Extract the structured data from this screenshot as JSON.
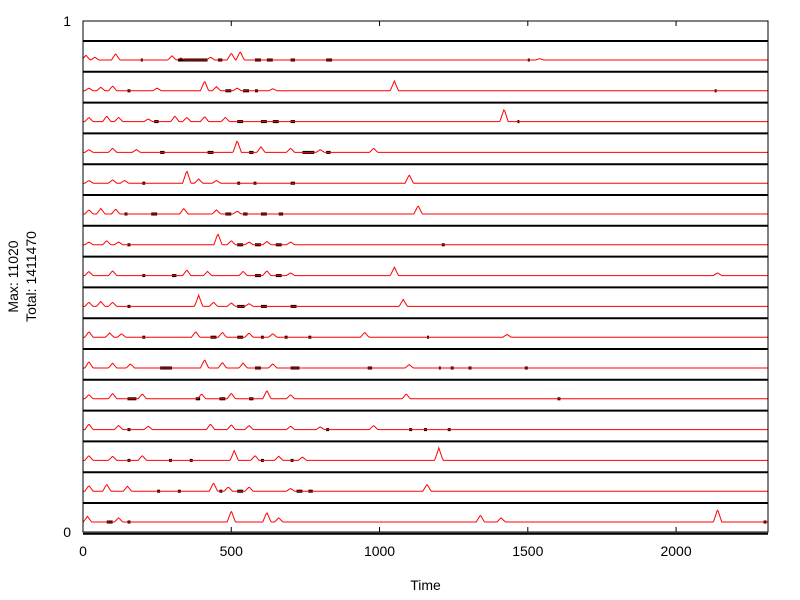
{
  "chart_data": {
    "type": "line",
    "xlabel": "Time",
    "ylabel_lines": [
      "Max: 11020",
      "Total: 1411470"
    ],
    "xlim": [
      0,
      2310
    ],
    "ylim": [
      0,
      1
    ],
    "x_ticks": [
      0,
      500,
      1000,
      1500,
      2000
    ],
    "y_ticks": [
      0,
      1
    ],
    "grid": false,
    "legend": "none",
    "colors": {
      "series": "#ff0000",
      "separator": "#000000",
      "activity": "#000000"
    },
    "rows": [
      {
        "peaks": [
          [
            10,
            0.35
          ],
          [
            40,
            0.2
          ],
          [
            110,
            0.45
          ],
          [
            300,
            0.3
          ],
          [
            330,
            0.15
          ],
          [
            430,
            0.2
          ],
          [
            500,
            0.5
          ],
          [
            530,
            0.6
          ],
          [
            1540,
            0.1
          ]
        ],
        "marks": [
          [
            195,
            200
          ],
          [
            320,
            420
          ],
          [
            455,
            470
          ],
          [
            580,
            600
          ],
          [
            620,
            640
          ],
          [
            700,
            715
          ],
          [
            820,
            840
          ],
          [
            1500,
            1505
          ]
        ]
      },
      {
        "peaks": [
          [
            20,
            0.2
          ],
          [
            60,
            0.25
          ],
          [
            100,
            0.35
          ],
          [
            250,
            0.2
          ],
          [
            410,
            0.7
          ],
          [
            450,
            0.3
          ],
          [
            520,
            0.2
          ],
          [
            640,
            0.15
          ],
          [
            1050,
            0.7
          ]
        ],
        "marks": [
          [
            150,
            160
          ],
          [
            480,
            500
          ],
          [
            540,
            560
          ],
          [
            580,
            590
          ],
          [
            2130,
            2135
          ]
        ]
      },
      {
        "peaks": [
          [
            20,
            0.3
          ],
          [
            80,
            0.4
          ],
          [
            120,
            0.3
          ],
          [
            220,
            0.2
          ],
          [
            310,
            0.4
          ],
          [
            350,
            0.3
          ],
          [
            410,
            0.35
          ],
          [
            480,
            0.3
          ],
          [
            1420,
            0.9
          ]
        ],
        "marks": [
          [
            240,
            255
          ],
          [
            520,
            540
          ],
          [
            600,
            620
          ],
          [
            640,
            660
          ],
          [
            700,
            715
          ],
          [
            1465,
            1470
          ]
        ]
      },
      {
        "peaks": [
          [
            20,
            0.2
          ],
          [
            100,
            0.3
          ],
          [
            180,
            0.2
          ],
          [
            520,
            0.85
          ],
          [
            600,
            0.4
          ],
          [
            700,
            0.3
          ],
          [
            800,
            0.2
          ],
          [
            980,
            0.3
          ]
        ],
        "marks": [
          [
            260,
            275
          ],
          [
            420,
            440
          ],
          [
            560,
            575
          ],
          [
            740,
            780
          ],
          [
            820,
            835
          ]
        ]
      },
      {
        "peaks": [
          [
            20,
            0.2
          ],
          [
            100,
            0.25
          ],
          [
            140,
            0.2
          ],
          [
            350,
            0.9
          ],
          [
            390,
            0.3
          ],
          [
            450,
            0.2
          ],
          [
            1100,
            0.6
          ]
        ],
        "marks": [
          [
            200,
            210
          ],
          [
            520,
            530
          ],
          [
            575,
            585
          ],
          [
            700,
            715
          ]
        ]
      },
      {
        "peaks": [
          [
            20,
            0.3
          ],
          [
            60,
            0.4
          ],
          [
            110,
            0.35
          ],
          [
            340,
            0.4
          ],
          [
            450,
            0.3
          ],
          [
            520,
            0.2
          ],
          [
            1130,
            0.6
          ]
        ],
        "marks": [
          [
            140,
            150
          ],
          [
            230,
            250
          ],
          [
            480,
            500
          ],
          [
            540,
            555
          ],
          [
            600,
            620
          ],
          [
            660,
            675
          ]
        ]
      },
      {
        "peaks": [
          [
            20,
            0.2
          ],
          [
            80,
            0.3
          ],
          [
            120,
            0.2
          ],
          [
            455,
            0.8
          ],
          [
            500,
            0.3
          ],
          [
            560,
            0.2
          ],
          [
            620,
            0.25
          ],
          [
            700,
            0.2
          ]
        ],
        "marks": [
          [
            150,
            160
          ],
          [
            520,
            540
          ],
          [
            580,
            600
          ],
          [
            650,
            670
          ],
          [
            1210,
            1220
          ]
        ]
      },
      {
        "peaks": [
          [
            20,
            0.3
          ],
          [
            100,
            0.35
          ],
          [
            350,
            0.4
          ],
          [
            420,
            0.3
          ],
          [
            540,
            0.3
          ],
          [
            620,
            0.35
          ],
          [
            700,
            0.2
          ],
          [
            1050,
            0.6
          ],
          [
            2140,
            0.2
          ]
        ],
        "marks": [
          [
            200,
            210
          ],
          [
            300,
            315
          ],
          [
            580,
            600
          ],
          [
            650,
            670
          ]
        ]
      },
      {
        "peaks": [
          [
            20,
            0.3
          ],
          [
            60,
            0.35
          ],
          [
            100,
            0.3
          ],
          [
            390,
            0.8
          ],
          [
            440,
            0.3
          ],
          [
            500,
            0.25
          ],
          [
            560,
            0.2
          ],
          [
            1080,
            0.5
          ]
        ],
        "marks": [
          [
            150,
            160
          ],
          [
            520,
            545
          ],
          [
            600,
            620
          ],
          [
            700,
            720
          ]
        ]
      },
      {
        "peaks": [
          [
            20,
            0.4
          ],
          [
            90,
            0.3
          ],
          [
            130,
            0.25
          ],
          [
            380,
            0.4
          ],
          [
            470,
            0.35
          ],
          [
            560,
            0.3
          ],
          [
            640,
            0.25
          ],
          [
            950,
            0.35
          ],
          [
            1430,
            0.2
          ]
        ],
        "marks": [
          [
            200,
            210
          ],
          [
            430,
            450
          ],
          [
            520,
            540
          ],
          [
            600,
            610
          ],
          [
            680,
            690
          ],
          [
            760,
            770
          ],
          [
            1160,
            1165
          ]
        ]
      },
      {
        "peaks": [
          [
            20,
            0.45
          ],
          [
            100,
            0.35
          ],
          [
            160,
            0.3
          ],
          [
            410,
            0.6
          ],
          [
            470,
            0.4
          ],
          [
            540,
            0.35
          ],
          [
            640,
            0.3
          ],
          [
            1100,
            0.25
          ]
        ],
        "marks": [
          [
            260,
            300
          ],
          [
            580,
            600
          ],
          [
            700,
            730
          ],
          [
            960,
            975
          ],
          [
            1200,
            1205
          ],
          [
            1240,
            1250
          ],
          [
            1300,
            1310
          ],
          [
            1490,
            1500
          ]
        ]
      },
      {
        "peaks": [
          [
            20,
            0.3
          ],
          [
            100,
            0.4
          ],
          [
            200,
            0.35
          ],
          [
            400,
            0.35
          ],
          [
            500,
            0.4
          ],
          [
            620,
            0.6
          ],
          [
            700,
            0.3
          ],
          [
            1090,
            0.35
          ]
        ],
        "marks": [
          [
            150,
            180
          ],
          [
            380,
            395
          ],
          [
            460,
            480
          ],
          [
            560,
            575
          ],
          [
            1600,
            1610
          ]
        ]
      },
      {
        "peaks": [
          [
            20,
            0.4
          ],
          [
            120,
            0.3
          ],
          [
            220,
            0.25
          ],
          [
            430,
            0.4
          ],
          [
            500,
            0.35
          ],
          [
            560,
            0.3
          ],
          [
            700,
            0.25
          ],
          [
            800,
            0.2
          ],
          [
            980,
            0.3
          ]
        ],
        "marks": [
          [
            150,
            160
          ],
          [
            820,
            830
          ],
          [
            1100,
            1110
          ],
          [
            1150,
            1160
          ],
          [
            1230,
            1240
          ]
        ]
      },
      {
        "peaks": [
          [
            20,
            0.35
          ],
          [
            100,
            0.3
          ],
          [
            200,
            0.35
          ],
          [
            510,
            0.7
          ],
          [
            580,
            0.35
          ],
          [
            660,
            0.3
          ],
          [
            740,
            0.25
          ],
          [
            1200,
            0.9
          ]
        ],
        "marks": [
          [
            150,
            160
          ],
          [
            290,
            300
          ],
          [
            360,
            370
          ],
          [
            600,
            610
          ],
          [
            700,
            710
          ]
        ]
      },
      {
        "peaks": [
          [
            20,
            0.4
          ],
          [
            80,
            0.5
          ],
          [
            150,
            0.35
          ],
          [
            440,
            0.6
          ],
          [
            490,
            0.3
          ],
          [
            560,
            0.3
          ],
          [
            700,
            0.2
          ],
          [
            1160,
            0.5
          ]
        ],
        "marks": [
          [
            250,
            260
          ],
          [
            320,
            330
          ],
          [
            460,
            470
          ],
          [
            520,
            540
          ],
          [
            720,
            740
          ],
          [
            760,
            775
          ]
        ]
      },
      {
        "peaks": [
          [
            15,
            0.4
          ],
          [
            120,
            0.3
          ],
          [
            500,
            0.8
          ],
          [
            620,
            0.7
          ],
          [
            660,
            0.3
          ],
          [
            1340,
            0.5
          ],
          [
            1410,
            0.3
          ],
          [
            2140,
            0.9
          ]
        ],
        "marks": [
          [
            80,
            100
          ],
          [
            150,
            160
          ],
          [
            2295,
            2305
          ]
        ]
      }
    ]
  }
}
